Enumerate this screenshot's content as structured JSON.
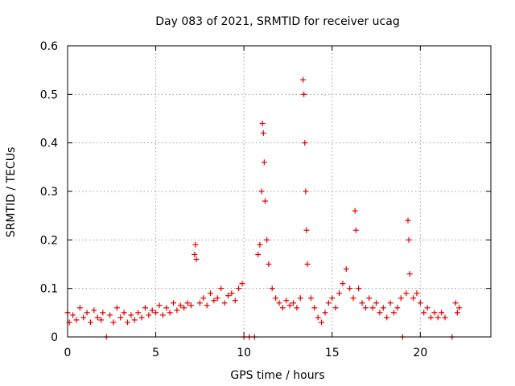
{
  "chart_data": {
    "type": "scatter",
    "title": "Day 083 of 2021, SRMTID for receiver ucag",
    "xlabel": "GPS time / hours",
    "ylabel": "SRMTID / TECUs",
    "xlim": [
      0,
      24
    ],
    "ylim": [
      0,
      0.6
    ],
    "x_ticks": [
      0,
      5,
      10,
      15,
      20
    ],
    "y_ticks": [
      0,
      0.1,
      0.2,
      0.3,
      0.4,
      0.5,
      0.6
    ],
    "x_tick_labels": [
      "0",
      "5",
      "10",
      "15",
      "20"
    ],
    "y_tick_labels": [
      "0",
      "0.1",
      "0.2",
      "0.3",
      "0.4",
      "0.5",
      "0.6"
    ],
    "grid": true,
    "marker": "+",
    "color": "#e00000",
    "series": [
      {
        "name": "SRMTID",
        "points": [
          [
            0.0,
            0.05
          ],
          [
            0.1,
            0.03
          ],
          [
            0.3,
            0.045
          ],
          [
            0.5,
            0.035
          ],
          [
            0.7,
            0.06
          ],
          [
            0.9,
            0.04
          ],
          [
            1.1,
            0.05
          ],
          [
            1.3,
            0.03
          ],
          [
            1.5,
            0.055
          ],
          [
            1.7,
            0.04
          ],
          [
            1.9,
            0.035
          ],
          [
            2.0,
            0.05
          ],
          [
            2.2,
            0.0
          ],
          [
            2.4,
            0.045
          ],
          [
            2.6,
            0.03
          ],
          [
            2.8,
            0.06
          ],
          [
            3.0,
            0.04
          ],
          [
            3.2,
            0.05
          ],
          [
            3.4,
            0.03
          ],
          [
            3.6,
            0.045
          ],
          [
            3.8,
            0.035
          ],
          [
            4.0,
            0.05
          ],
          [
            4.2,
            0.04
          ],
          [
            4.4,
            0.06
          ],
          [
            4.6,
            0.045
          ],
          [
            4.8,
            0.055
          ],
          [
            5.0,
            0.05
          ],
          [
            5.2,
            0.065
          ],
          [
            5.4,
            0.045
          ],
          [
            5.6,
            0.06
          ],
          [
            5.8,
            0.05
          ],
          [
            6.0,
            0.07
          ],
          [
            6.2,
            0.055
          ],
          [
            6.4,
            0.065
          ],
          [
            6.6,
            0.06
          ],
          [
            6.8,
            0.07
          ],
          [
            7.0,
            0.065
          ],
          [
            7.2,
            0.17
          ],
          [
            7.25,
            0.19
          ],
          [
            7.3,
            0.16
          ],
          [
            7.5,
            0.07
          ],
          [
            7.7,
            0.08
          ],
          [
            7.9,
            0.065
          ],
          [
            8.1,
            0.09
          ],
          [
            8.3,
            0.075
          ],
          [
            8.5,
            0.08
          ],
          [
            8.7,
            0.1
          ],
          [
            8.9,
            0.07
          ],
          [
            9.1,
            0.085
          ],
          [
            9.3,
            0.09
          ],
          [
            9.5,
            0.075
          ],
          [
            9.7,
            0.1
          ],
          [
            9.9,
            0.11
          ],
          [
            10.0,
            0.0
          ],
          [
            10.3,
            0.0
          ],
          [
            10.6,
            0.0
          ],
          [
            10.8,
            0.17
          ],
          [
            10.9,
            0.19
          ],
          [
            11.0,
            0.3
          ],
          [
            11.05,
            0.44
          ],
          [
            11.1,
            0.42
          ],
          [
            11.15,
            0.36
          ],
          [
            11.2,
            0.28
          ],
          [
            11.3,
            0.2
          ],
          [
            11.4,
            0.15
          ],
          [
            11.6,
            0.1
          ],
          [
            11.8,
            0.08
          ],
          [
            12.0,
            0.07
          ],
          [
            12.2,
            0.06
          ],
          [
            12.4,
            0.075
          ],
          [
            12.6,
            0.065
          ],
          [
            12.8,
            0.07
          ],
          [
            13.0,
            0.06
          ],
          [
            13.2,
            0.08
          ],
          [
            13.35,
            0.53
          ],
          [
            13.4,
            0.5
          ],
          [
            13.45,
            0.4
          ],
          [
            13.5,
            0.3
          ],
          [
            13.55,
            0.22
          ],
          [
            13.6,
            0.15
          ],
          [
            13.8,
            0.08
          ],
          [
            14.0,
            0.06
          ],
          [
            14.2,
            0.04
          ],
          [
            14.4,
            0.03
          ],
          [
            14.6,
            0.05
          ],
          [
            14.8,
            0.07
          ],
          [
            15.0,
            0.08
          ],
          [
            15.2,
            0.06
          ],
          [
            15.4,
            0.09
          ],
          [
            15.6,
            0.11
          ],
          [
            15.8,
            0.14
          ],
          [
            16.0,
            0.1
          ],
          [
            16.2,
            0.08
          ],
          [
            16.3,
            0.26
          ],
          [
            16.35,
            0.22
          ],
          [
            16.5,
            0.1
          ],
          [
            16.7,
            0.07
          ],
          [
            16.9,
            0.06
          ],
          [
            17.1,
            0.08
          ],
          [
            17.3,
            0.06
          ],
          [
            17.5,
            0.07
          ],
          [
            17.7,
            0.05
          ],
          [
            17.9,
            0.06
          ],
          [
            18.1,
            0.04
          ],
          [
            18.3,
            0.07
          ],
          [
            18.5,
            0.05
          ],
          [
            18.7,
            0.06
          ],
          [
            18.9,
            0.08
          ],
          [
            19.0,
            0.0
          ],
          [
            19.2,
            0.09
          ],
          [
            19.3,
            0.24
          ],
          [
            19.35,
            0.2
          ],
          [
            19.4,
            0.13
          ],
          [
            19.6,
            0.08
          ],
          [
            19.8,
            0.09
          ],
          [
            20.0,
            0.07
          ],
          [
            20.2,
            0.05
          ],
          [
            20.4,
            0.06
          ],
          [
            20.6,
            0.04
          ],
          [
            20.8,
            0.05
          ],
          [
            21.0,
            0.04
          ],
          [
            21.2,
            0.05
          ],
          [
            21.4,
            0.04
          ],
          [
            21.8,
            0.0
          ],
          [
            22.0,
            0.07
          ],
          [
            22.1,
            0.05
          ],
          [
            22.2,
            0.06
          ]
        ]
      }
    ]
  }
}
